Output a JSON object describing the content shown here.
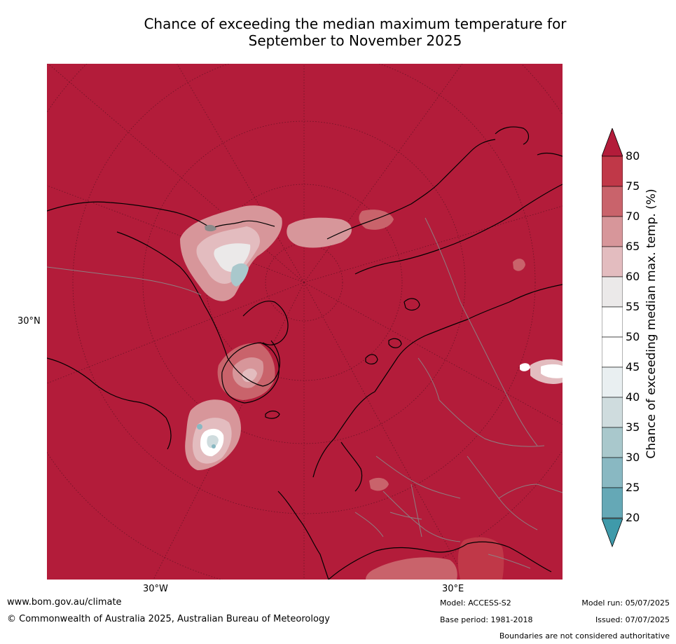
{
  "title": {
    "line1": "Chance of exceeding the median maximum temperature for",
    "line2": "September to November 2025"
  },
  "map": {
    "axis_labels": {
      "left": "30°N",
      "bottom_left": "30°W",
      "bottom_right": "30°E"
    },
    "background_color": "#b31c3a"
  },
  "colorbar": {
    "label": "Chance of exceeding median max. temp. (%)",
    "ticks": [
      "80",
      "75",
      "70",
      "65",
      "60",
      "55",
      "50",
      "45",
      "40",
      "35",
      "30",
      "25",
      "20"
    ],
    "bins": [
      {
        "range": "75-80",
        "color": "#c03848"
      },
      {
        "range": "70-75",
        "color": "#c9636b"
      },
      {
        "range": "65-70",
        "color": "#d7969a"
      },
      {
        "range": "60-65",
        "color": "#e3bcbf"
      },
      {
        "range": "55-60",
        "color": "#ebe9e9"
      },
      {
        "range": "50-55",
        "color": "#ffffff"
      },
      {
        "range": "45-50",
        "color": "#ffffff"
      },
      {
        "range": "40-45",
        "color": "#e9eff1"
      },
      {
        "range": "35-40",
        "color": "#cfdcde"
      },
      {
        "range": "30-35",
        "color": "#a9c8cc"
      },
      {
        "range": "25-30",
        "color": "#89b8c2"
      },
      {
        "range": "20-25",
        "color": "#65a8b6"
      }
    ],
    "over_color": "#b31c3a",
    "under_color": "#3f9aaa"
  },
  "footer": {
    "website": "www.bom.gov.au/climate",
    "copyright": "© Commonwealth of Australia 2025, Australian Bureau of Meteorology",
    "model": "Model: ACCESS-S2",
    "base_period": "Base period: 1981-2018",
    "model_run": "Model run: 05/07/2025",
    "issued": "Issued: 07/07/2025",
    "disclaimer": "Boundaries are not considered authoritative"
  }
}
